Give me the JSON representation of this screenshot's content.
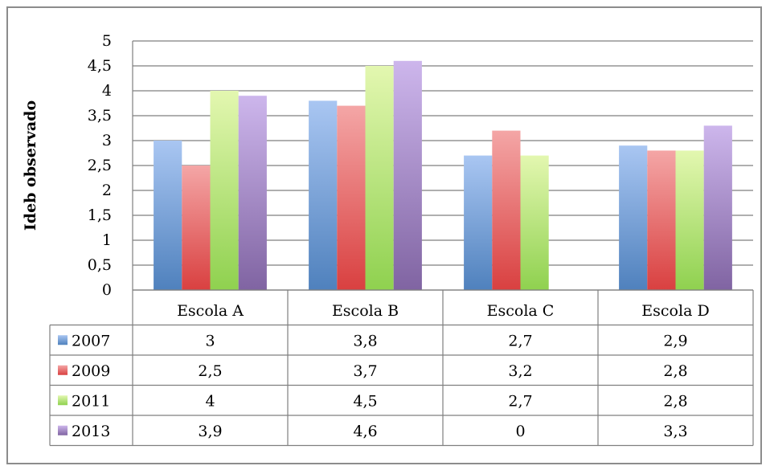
{
  "chart_data": {
    "type": "bar",
    "title": "",
    "xlabel": "",
    "ylabel": "Ideb observado",
    "ylim": [
      0,
      5
    ],
    "yticks": [
      "0",
      "0,5",
      "1",
      "1,5",
      "2",
      "2,5",
      "3",
      "3,5",
      "4",
      "4,5",
      "5"
    ],
    "grid": true,
    "legend": "data-table-left",
    "categories": [
      "Escola A",
      "Escola B",
      "Escola C",
      "Escola D"
    ],
    "series": [
      {
        "name": "2007",
        "values": [
          3,
          3.8,
          2.7,
          2.9
        ],
        "labels": [
          "3",
          "3,8",
          "2,7",
          "2,9"
        ],
        "color": "#4f81bd",
        "light": "#a9c6f2"
      },
      {
        "name": "2009",
        "values": [
          2.5,
          3.7,
          3.2,
          2.8
        ],
        "labels": [
          "2,5",
          "3,7",
          "3,2",
          "2,8"
        ],
        "color": "#d94040",
        "light": "#f4a6a6"
      },
      {
        "name": "2011",
        "values": [
          4,
          4.5,
          2.7,
          2.8
        ],
        "labels": [
          "4",
          "4,5",
          "2,7",
          "2,8"
        ],
        "color": "#8fd14f",
        "light": "#e3f7b0"
      },
      {
        "name": "2013",
        "values": [
          3.9,
          4.6,
          0,
          3.3
        ],
        "labels": [
          "3,9",
          "4,6",
          "0",
          "3,3"
        ],
        "color": "#8064a2",
        "light": "#cdb6ec"
      }
    ]
  }
}
